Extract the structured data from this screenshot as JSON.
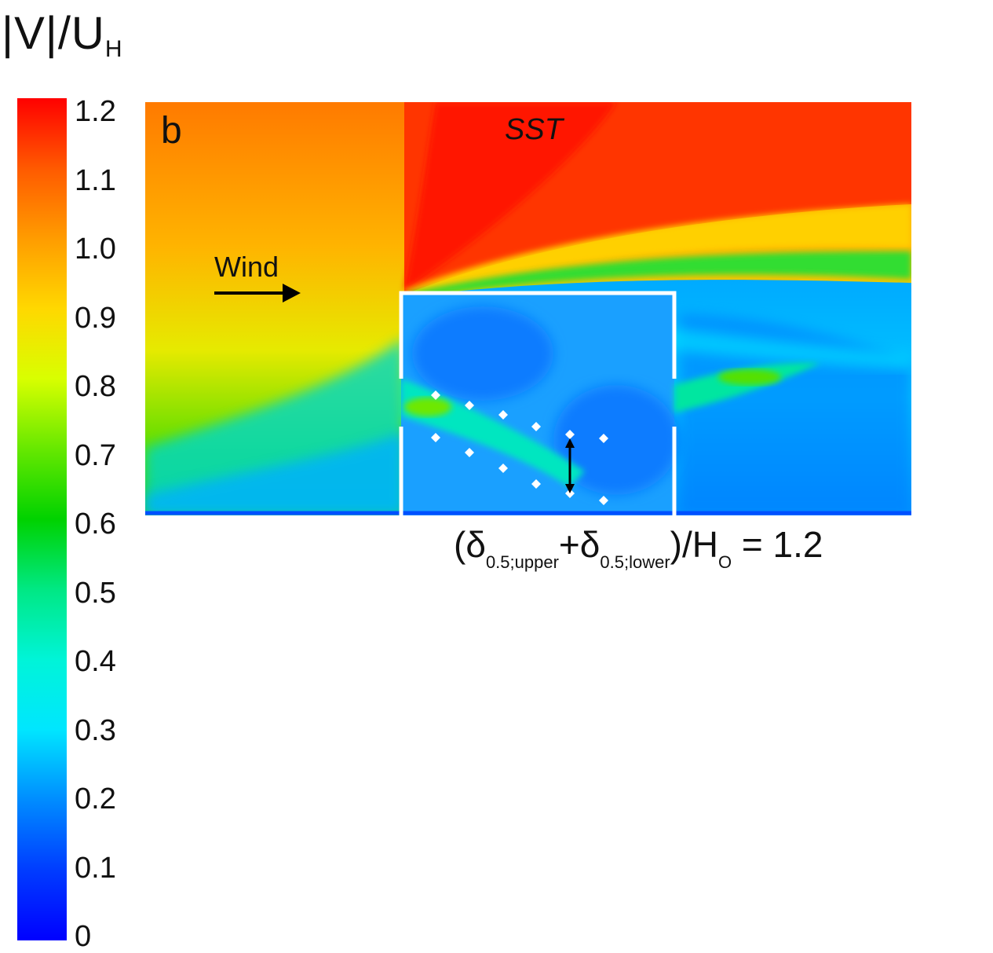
{
  "colorbar": {
    "title_main": "|V|/U",
    "title_sub": "H",
    "ticks": [
      "1.2",
      "1.1",
      "1.0",
      "0.9",
      "0.8",
      "0.7",
      "0.6",
      "0.5",
      "0.4",
      "0.3",
      "0.2",
      "0.1",
      "0"
    ],
    "stops": [
      "#ff0000",
      "#ff5a00",
      "#ff9c00",
      "#ffd800",
      "#d8ff00",
      "#66e800",
      "#00d200",
      "#00e884",
      "#00f4d8",
      "#00e6ff",
      "#008cff",
      "#003cff",
      "#0000ff"
    ]
  },
  "panel": {
    "label": "b",
    "model": "SST",
    "wind_label": "Wind"
  },
  "annotation": {
    "open": "(δ",
    "sub1": "0.5;upper",
    "mid": "+δ",
    "sub2": "0.5;lower",
    "slash": ")/H",
    "sub3": "O",
    "value": " = 1.2"
  }
}
